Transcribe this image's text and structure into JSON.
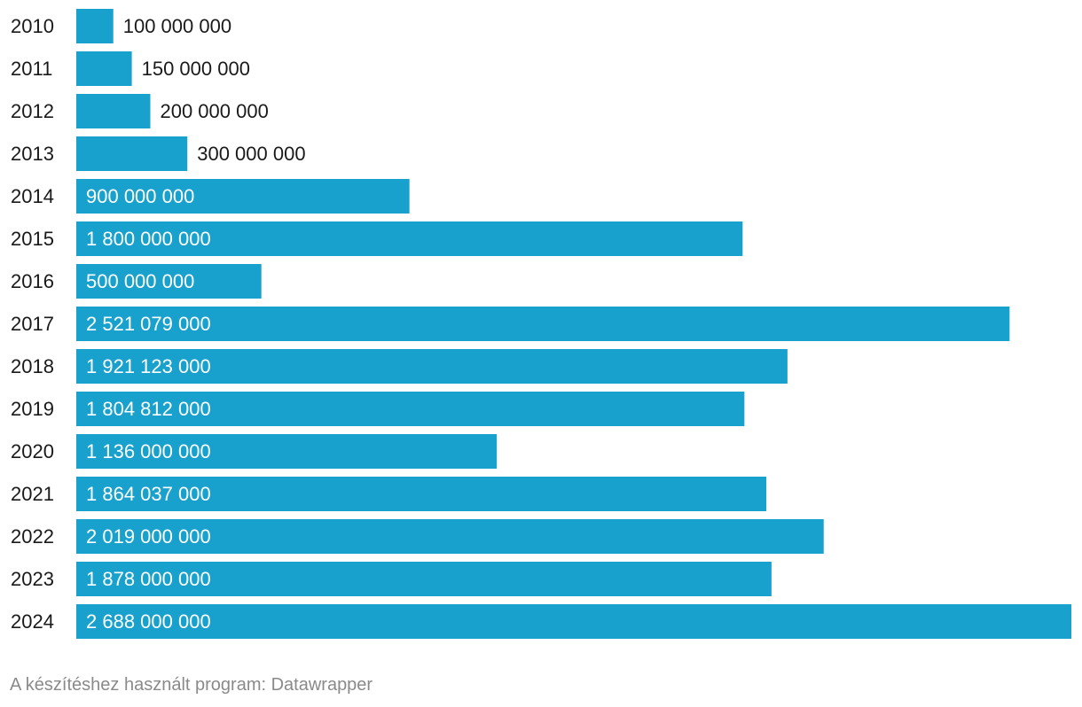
{
  "chart_data": {
    "type": "bar",
    "orientation": "horizontal",
    "categories": [
      "2010",
      "2011",
      "2012",
      "2013",
      "2014",
      "2015",
      "2016",
      "2017",
      "2018",
      "2019",
      "2020",
      "2021",
      "2022",
      "2023",
      "2024"
    ],
    "values": [
      100000000,
      150000000,
      200000000,
      300000000,
      900000000,
      1800000000,
      500000000,
      2521079000,
      1921123000,
      1804812000,
      1136000000,
      1864037000,
      2019000000,
      1878000000,
      2688000000
    ],
    "value_labels": [
      "100 000 000",
      "150 000 000",
      "200 000 000",
      "300 000 000",
      "900 000 000",
      "1 800 000 000",
      "500 000 000",
      "2 521 079 000",
      "1 921 123 000",
      "1 804 812 000",
      "1 136 000 000",
      "1 864 037 000",
      "2 019 000 000",
      "1 878 000 000",
      "2 688 000 000"
    ],
    "title": "",
    "xlabel": "",
    "ylabel": "",
    "xlim": [
      0,
      2688000000
    ],
    "grid": false,
    "legend": "none",
    "bar_color": "#18a1cd"
  },
  "footer": {
    "credit": "A készítéshez használt program: Datawrapper"
  }
}
